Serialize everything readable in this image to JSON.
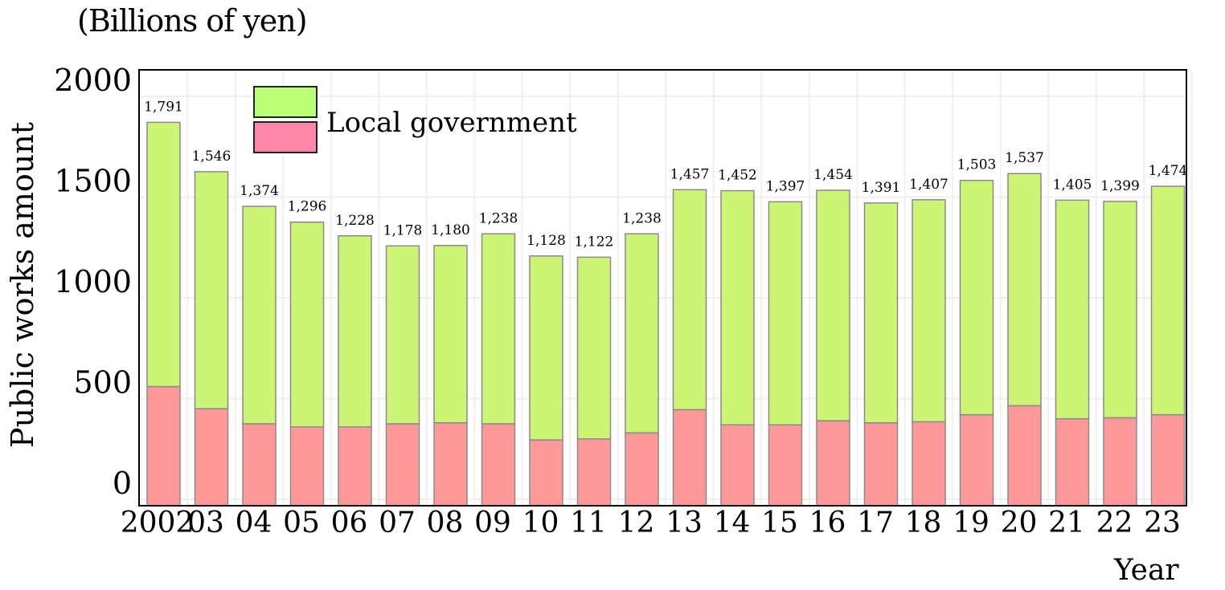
{
  "unit_label": "(Billions of yen)",
  "chart_data": {
    "type": "bar",
    "stacked": true,
    "ylabel": "Public works amount",
    "xlabel": "Year",
    "ylim": [
      0,
      2000
    ],
    "yticks": [
      "0",
      "500",
      "1000",
      "1500",
      "2000"
    ],
    "categories": [
      "2002",
      "03",
      "04",
      "05",
      "06",
      "07",
      "08",
      "09",
      "10",
      "11",
      "12",
      "13",
      "14",
      "15",
      "16",
      "17",
      "18",
      "19",
      "20",
      "21",
      "22",
      "23"
    ],
    "series": [
      {
        "values": [
          480,
          370,
          295,
          280,
          280,
          295,
          300,
          295,
          215,
          220,
          250,
          365,
          290,
          290,
          310,
          300,
          305,
          340,
          385,
          320,
          325,
          340
        ],
        "color": "#ff9999"
      },
      {
        "name": "Local government",
        "values": [
          1311,
          1176,
          1079,
          1016,
          948,
          883,
          880,
          943,
          913,
          902,
          988,
          1092,
          1162,
          1107,
          1144,
          1091,
          1102,
          1163,
          1152,
          1085,
          1074,
          1134
        ],
        "color": "#ccf575"
      }
    ],
    "totals": [
      1791,
      1546,
      1374,
      1296,
      1228,
      1178,
      1180,
      1238,
      1128,
      1122,
      1238,
      1457,
      1452,
      1397,
      1454,
      1391,
      1407,
      1503,
      1537,
      1405,
      1399,
      1474
    ],
    "total_labels": [
      "1,791",
      "1,546",
      "1,374",
      "1,296",
      "1,228",
      "1,178",
      "1,180",
      "1,238",
      "1,128",
      "1,122",
      "1,238",
      "1,457",
      "1,452",
      "1,397",
      "1,454",
      "1,391",
      "1,407",
      "1,503",
      "1,537",
      "1,405",
      "1,399",
      "1,474"
    ],
    "legend": {
      "placement": "top-left",
      "text": "Local government",
      "swatch_colors": [
        "#bbff77",
        "#ff88aa"
      ]
    },
    "grid": true
  }
}
